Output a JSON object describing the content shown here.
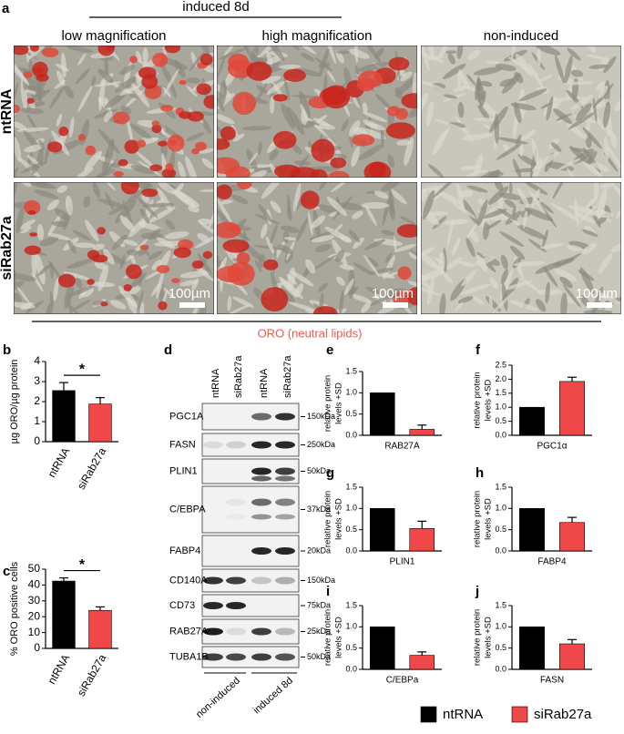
{
  "panel_a": {
    "label": "a",
    "group_title": "induced 8d",
    "columns": [
      "low magnification",
      "high magnification",
      "non-induced"
    ],
    "rows": [
      "ntRNA",
      "siRab27a"
    ],
    "scale_bar": "100µm",
    "caption": "ORO (neutral lipids)"
  },
  "panel_d": {
    "label": "d",
    "lanes": [
      "ntRNA",
      "siRab27a",
      "ntRNA",
      "siRab27a"
    ],
    "blots": [
      {
        "protein": "PGC1A",
        "size": "150kDa"
      },
      {
        "protein": "FASN",
        "size": "250kDa"
      },
      {
        "protein": "PLIN1",
        "size": "50kDa"
      },
      {
        "protein": "C/EBPA",
        "size": "37kDa"
      },
      {
        "protein": "FABP4",
        "size": "20kDa"
      },
      {
        "protein": "CD140A",
        "size": "150kDa"
      },
      {
        "protein": "CD73",
        "size": "75kDa"
      },
      {
        "protein": "RAB27A",
        "size": "25kDa"
      },
      {
        "protein": "TUBA1B",
        "size": "50kDa"
      }
    ],
    "groups": [
      "non-induced",
      "induced 8d"
    ]
  },
  "chart_data": [
    {
      "type": "bar",
      "label": "b",
      "y_label": [
        "µg ORO/µg protein"
      ],
      "categories": [
        "ntRNA",
        "siRab27a"
      ],
      "values": [
        2.55,
        1.88
      ],
      "errors": [
        0.4,
        0.32
      ],
      "colors": [
        "#000000",
        "#f04848"
      ],
      "ylim": [
        0,
        4
      ],
      "yticks": [
        0,
        1,
        2,
        3,
        4
      ],
      "annotation": "*"
    },
    {
      "type": "bar",
      "label": "c",
      "y_label": [
        "% ORO positive cells"
      ],
      "categories": [
        "ntRNA",
        "siRab27a"
      ],
      "values": [
        42.5,
        24
      ],
      "errors": [
        2,
        2.2
      ],
      "colors": [
        "#000000",
        "#f04848"
      ],
      "ylim": [
        0,
        50
      ],
      "yticks": [
        0,
        10,
        20,
        30,
        40,
        50
      ],
      "annotation": "*"
    },
    {
      "type": "bar",
      "label": "e",
      "y_label": [
        "relative protein",
        "levels +SD"
      ],
      "x_label": "RAB27A",
      "values": [
        1,
        0.14
      ],
      "errors": [
        null,
        0.1
      ],
      "colors": [
        "#000000",
        "#f04848"
      ],
      "ylim": [
        0,
        1.5
      ],
      "yticks": [
        {
          "value": 0,
          "label": "0.0"
        },
        0.5,
        {
          "value": 1,
          "label": "1.0"
        },
        1.5
      ]
    },
    {
      "type": "bar",
      "label": "f",
      "y_label": [
        "relative protein",
        "levels +SD"
      ],
      "x_label": "PGC1α",
      "values": [
        1,
        1.92
      ],
      "errors": [
        null,
        0.15
      ],
      "colors": [
        "#000000",
        "#f04848"
      ],
      "ylim": [
        0,
        2.5
      ],
      "yticks": [
        {
          "value": 0,
          "label": "0.0"
        },
        0.5,
        {
          "value": 1,
          "label": "1.0"
        },
        1.5,
        {
          "value": 2,
          "label": "2.0"
        },
        2.5
      ]
    },
    {
      "type": "bar",
      "label": "g",
      "y_label": [
        "relative protein",
        "levels +SD"
      ],
      "x_label": "PLIN1",
      "values": [
        1,
        0.53
      ],
      "errors": [
        null,
        0.17
      ],
      "colors": [
        "#000000",
        "#f04848"
      ],
      "ylim": [
        0,
        1.5
      ],
      "yticks": [
        {
          "value": 0,
          "label": "0.0"
        },
        0.5,
        {
          "value": 1,
          "label": "1.0"
        },
        1.5
      ]
    },
    {
      "type": "bar",
      "label": "h",
      "y_label": [
        "relative protein",
        "levels +SD"
      ],
      "x_label": "FABP4",
      "values": [
        1,
        0.67
      ],
      "errors": [
        null,
        0.12
      ],
      "colors": [
        "#000000",
        "#f04848"
      ],
      "ylim": [
        0,
        1.5
      ],
      "yticks": [
        {
          "value": 0,
          "label": "0.0"
        },
        0.5,
        {
          "value": 1,
          "label": "1.0"
        },
        1.5
      ]
    },
    {
      "type": "bar",
      "label": "i",
      "y_label": [
        "relative protein",
        "levels +SD"
      ],
      "x_label": "C/EBPa",
      "values": [
        1,
        0.33
      ],
      "errors": [
        null,
        0.08
      ],
      "colors": [
        "#000000",
        "#f04848"
      ],
      "ylim": [
        0,
        1.5
      ],
      "yticks": [
        {
          "value": 0,
          "label": "0.0"
        },
        0.5,
        {
          "value": 1,
          "label": "1.0"
        },
        1.5
      ]
    },
    {
      "type": "bar",
      "label": "j",
      "y_label": [
        "relative protein",
        "levels +SD"
      ],
      "x_label": "FASN",
      "values": [
        1,
        0.6
      ],
      "errors": [
        null,
        0.1
      ],
      "colors": [
        "#000000",
        "#f04848"
      ],
      "ylim": [
        0,
        1.5
      ],
      "yticks": [
        {
          "value": 0,
          "label": "0.0"
        },
        0.5,
        {
          "value": 1,
          "label": "1.0"
        },
        1.5
      ]
    }
  ],
  "legend": [
    {
      "name": "ntRNA",
      "color": "#000000"
    },
    {
      "name": "siRab27a",
      "color": "#f04848"
    }
  ]
}
